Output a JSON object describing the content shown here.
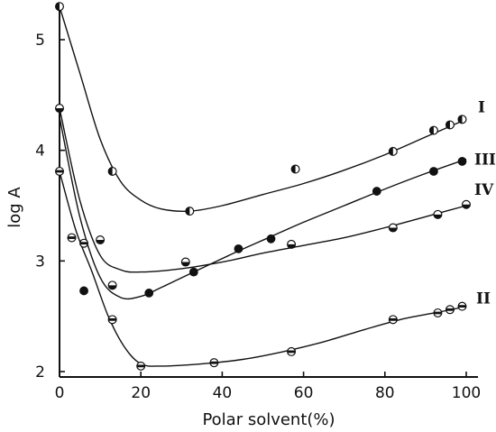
{
  "chart_data": {
    "type": "scatter",
    "xlabel": "Polar solvent(%)",
    "ylabel": "log A",
    "xlim": [
      0,
      100
    ],
    "ylim": [
      1.95,
      5.6
    ],
    "x_ticks": [
      0,
      20,
      40,
      60,
      80,
      100
    ],
    "y_ticks": [
      2,
      3,
      4,
      5
    ],
    "x_tick_labels": [
      "0",
      "20",
      "40",
      "60",
      "80",
      "100"
    ],
    "y_tick_labels": [
      "2",
      "3",
      "4",
      "5"
    ],
    "grid": false,
    "legend": "none (series labelled at right end of curves)",
    "series": [
      {
        "name": "I",
        "marker": "half-filled (left dark)",
        "points": [
          [
            0,
            5.3
          ],
          [
            13,
            3.81
          ],
          [
            32,
            3.45
          ],
          [
            58,
            3.83
          ],
          [
            82,
            3.99
          ],
          [
            92,
            4.18
          ],
          [
            96,
            4.23
          ],
          [
            99,
            4.28
          ]
        ],
        "curve": [
          [
            0,
            5.3
          ],
          [
            5,
            4.7
          ],
          [
            10,
            4.1
          ],
          [
            15,
            3.72
          ],
          [
            20,
            3.55
          ],
          [
            25,
            3.47
          ],
          [
            32,
            3.45
          ],
          [
            40,
            3.5
          ],
          [
            50,
            3.6
          ],
          [
            60,
            3.7
          ],
          [
            70,
            3.82
          ],
          [
            80,
            3.96
          ],
          [
            90,
            4.12
          ],
          [
            100,
            4.28
          ]
        ]
      },
      {
        "name": "III",
        "marker": "filled",
        "points": [
          [
            6,
            2.73
          ],
          [
            22,
            2.71
          ],
          [
            33,
            2.9
          ],
          [
            44,
            3.11
          ],
          [
            52,
            3.2
          ],
          [
            78,
            3.63
          ],
          [
            92,
            3.81
          ],
          [
            99,
            3.9
          ]
        ],
        "curve": [
          [
            0,
            4.3
          ],
          [
            5,
            3.4
          ],
          [
            10,
            2.85
          ],
          [
            15,
            2.67
          ],
          [
            20,
            2.68
          ],
          [
            25,
            2.76
          ],
          [
            33,
            2.9
          ],
          [
            44,
            3.09
          ],
          [
            52,
            3.22
          ],
          [
            60,
            3.35
          ],
          [
            70,
            3.5
          ],
          [
            80,
            3.65
          ],
          [
            90,
            3.79
          ],
          [
            100,
            3.92
          ]
        ]
      },
      {
        "name": "IV",
        "marker": "half-filled (bottom dark)",
        "points": [
          [
            0,
            4.38
          ],
          [
            10,
            3.19
          ],
          [
            13,
            2.78
          ],
          [
            31,
            2.99
          ],
          [
            57,
            3.15
          ],
          [
            82,
            3.3
          ],
          [
            93,
            3.42
          ],
          [
            100,
            3.51
          ]
        ],
        "curve": [
          [
            0,
            4.38
          ],
          [
            5,
            3.55
          ],
          [
            10,
            3.05
          ],
          [
            15,
            2.92
          ],
          [
            20,
            2.9
          ],
          [
            30,
            2.93
          ],
          [
            40,
            2.99
          ],
          [
            50,
            3.07
          ],
          [
            60,
            3.14
          ],
          [
            70,
            3.21
          ],
          [
            80,
            3.3
          ],
          [
            90,
            3.4
          ],
          [
            100,
            3.5
          ]
        ]
      },
      {
        "name": "II",
        "marker": "horizontal-band",
        "points": [
          [
            0,
            3.81
          ],
          [
            3,
            3.21
          ],
          [
            6,
            3.16
          ],
          [
            13,
            2.47
          ],
          [
            20,
            2.05
          ],
          [
            38,
            2.08
          ],
          [
            57,
            2.18
          ],
          [
            82,
            2.47
          ],
          [
            93,
            2.53
          ],
          [
            96,
            2.56
          ],
          [
            99,
            2.59
          ]
        ],
        "curve": [
          [
            0,
            3.81
          ],
          [
            4,
            3.28
          ],
          [
            8,
            2.9
          ],
          [
            12,
            2.5
          ],
          [
            16,
            2.22
          ],
          [
            20,
            2.07
          ],
          [
            25,
            2.05
          ],
          [
            35,
            2.07
          ],
          [
            45,
            2.11
          ],
          [
            55,
            2.18
          ],
          [
            65,
            2.27
          ],
          [
            75,
            2.38
          ],
          [
            85,
            2.48
          ],
          [
            95,
            2.55
          ],
          [
            100,
            2.59
          ]
        ]
      }
    ]
  }
}
